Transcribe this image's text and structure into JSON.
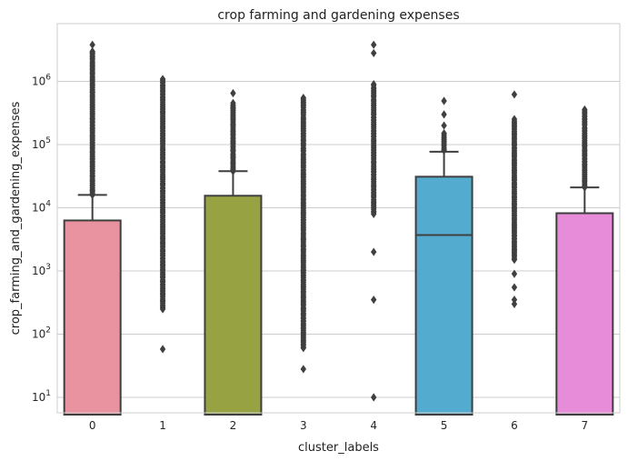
{
  "chart_data": {
    "type": "box",
    "title": "crop farming and gardening expenses",
    "xlabel": "cluster_labels",
    "ylabel": "crop_farming_and_gardening_expenses",
    "yscale": "log",
    "ylim": [
      5,
      7000000
    ],
    "yticks": [
      {
        "value": 10,
        "base": "10",
        "exp": "1"
      },
      {
        "value": 100,
        "base": "10",
        "exp": "2"
      },
      {
        "value": 1000,
        "base": "10",
        "exp": "3"
      },
      {
        "value": 10000,
        "base": "10",
        "exp": "4"
      },
      {
        "value": 100000,
        "base": "10",
        "exp": "5"
      },
      {
        "value": 1000000,
        "base": "10",
        "exp": "6"
      }
    ],
    "grid": true,
    "categories": [
      "0",
      "1",
      "2",
      "3",
      "4",
      "5",
      "6",
      "7"
    ],
    "boxes": [
      {
        "label": "0",
        "color": "#e8939f",
        "q1": 0,
        "median": 0,
        "q3": 6300,
        "whisker_low": 0,
        "whisker_high": 16000,
        "outlier_range": [
          16000,
          3000000
        ],
        "outliers": [
          3800000,
          2800000
        ]
      },
      {
        "label": "1",
        "color": "#c69b45",
        "q1": 0,
        "median": 0,
        "q3": 0,
        "whisker_low": 0,
        "whisker_high": 0,
        "outlier_range": [
          250,
          1100000
        ],
        "outliers": [
          58
        ]
      },
      {
        "label": "2",
        "color": "#97a342",
        "q1": 0,
        "median": 0,
        "q3": 15500,
        "whisker_low": 0,
        "whisker_high": 38000,
        "outlier_range": [
          38000,
          450000
        ],
        "outliers": [
          650000
        ]
      },
      {
        "label": "3",
        "color": "#4fb27f",
        "q1": 0,
        "median": 0,
        "q3": 0,
        "whisker_low": 0,
        "whisker_high": 0,
        "outlier_range": [
          60,
          550000
        ],
        "outliers": [
          28
        ]
      },
      {
        "label": "4",
        "color": "#53b1a8",
        "q1": 0,
        "median": 0,
        "q3": 0,
        "whisker_low": 0,
        "whisker_high": 0,
        "outlier_range": [
          8000,
          900000
        ],
        "outliers": [
          3800000,
          2800000,
          2000,
          350,
          10
        ]
      },
      {
        "label": "5",
        "color": "#53acd0",
        "q1": 0,
        "median": 3700,
        "q3": 31000,
        "whisker_low": 0,
        "whisker_high": 77000,
        "outlier_range": [
          80000,
          150000
        ],
        "outliers": [
          490000,
          300000,
          200000
        ]
      },
      {
        "label": "6",
        "color": "#a59be6",
        "q1": 0,
        "median": 0,
        "q3": 0,
        "whisker_low": 0,
        "whisker_high": 0,
        "outlier_range": [
          1500,
          250000
        ],
        "outliers": [
          620000,
          900,
          550,
          350,
          300
        ]
      },
      {
        "label": "7",
        "color": "#e68cd8",
        "q1": 0,
        "median": 0,
        "q3": 8200,
        "whisker_low": 0,
        "whisker_high": 21000,
        "outlier_range": [
          21000,
          360000
        ],
        "outliers": []
      }
    ]
  }
}
